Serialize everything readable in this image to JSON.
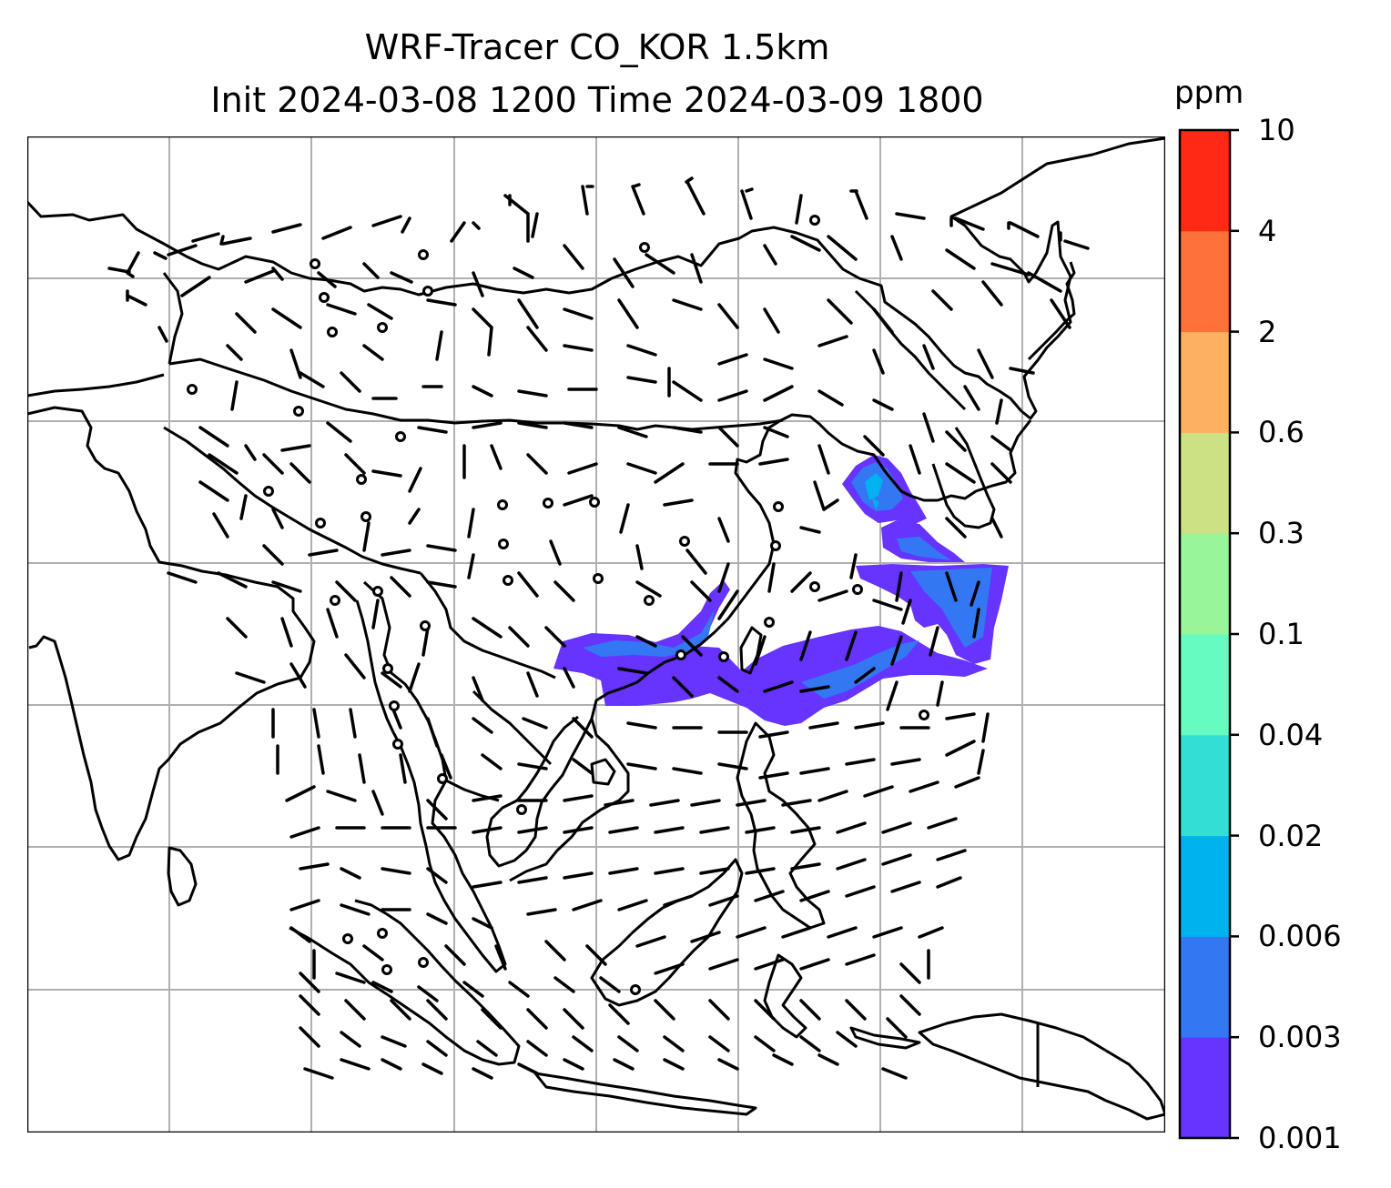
{
  "title": {
    "line1": "WRF-Tracer CO_KOR 1.5km",
    "line2": "Init 2024-03-08 1200 Time 2024-03-09 1800"
  },
  "colorbar": {
    "unit": "ppm",
    "levels": [
      "0.001",
      "0.003",
      "0.006",
      "0.02",
      "0.04",
      "0.1",
      "0.3",
      "0.6",
      "2",
      "4",
      "10"
    ],
    "colors": [
      "#6633ff",
      "#3377f2",
      "#00b3ee",
      "#33dfd5",
      "#66fcbf",
      "#99f599",
      "#cce084",
      "#fdb061",
      "#ff713b",
      "#ff2916"
    ]
  },
  "map": {
    "gridlines": true,
    "background": "#ffffff",
    "coastline_color": "#000000",
    "gridline_color": "#b0b0b0",
    "tracer_colors_used": [
      "#6633ff",
      "#3377f2",
      "#00b3ee"
    ]
  }
}
